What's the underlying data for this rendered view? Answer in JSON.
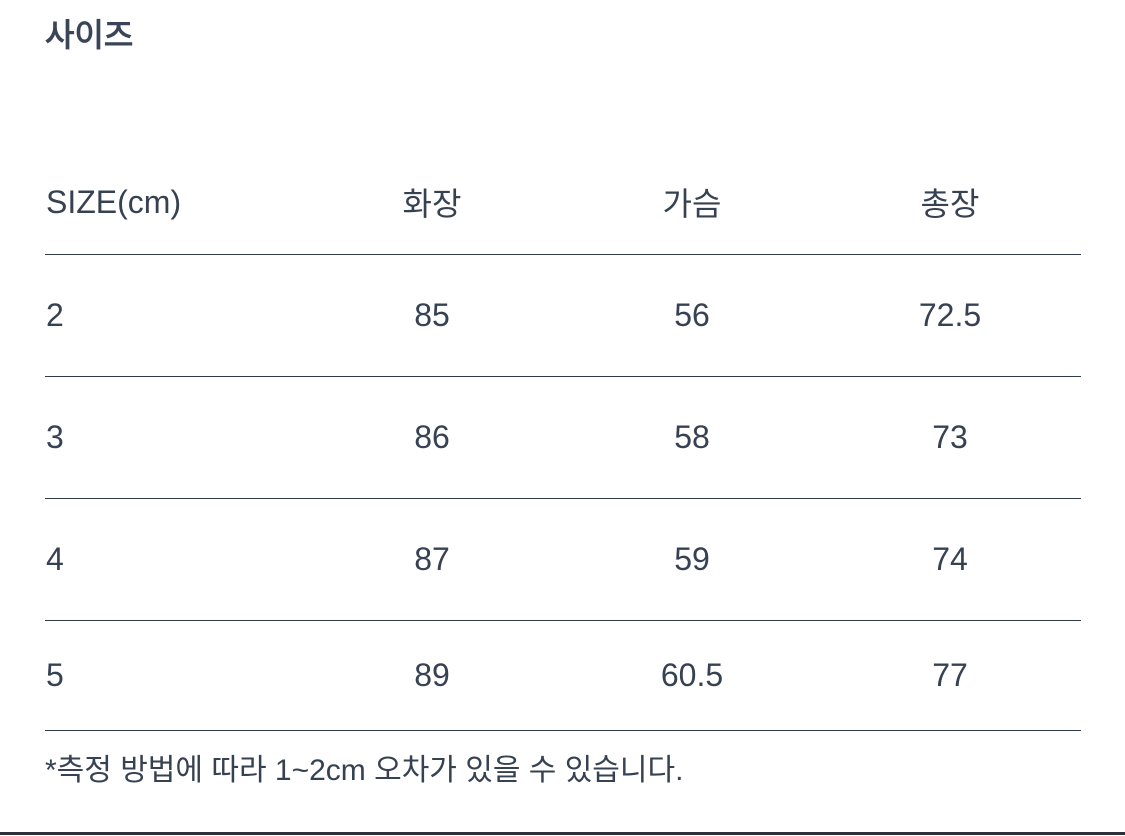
{
  "title": "사이즈",
  "table": {
    "headers": [
      "SIZE(cm)",
      "화장",
      "가슴",
      "총장"
    ],
    "rows": [
      [
        "2",
        "85",
        "56",
        "72.5"
      ],
      [
        "3",
        "86",
        "58",
        "73"
      ],
      [
        "4",
        "87",
        "59",
        "74"
      ],
      [
        "5",
        "89",
        "60.5",
        "77"
      ]
    ]
  },
  "note": "*측정 방법에 따라 1~2cm 오차가 있을 수 있습니다.",
  "colors": {
    "text": "#364152",
    "divider": "#2f3a4a"
  }
}
